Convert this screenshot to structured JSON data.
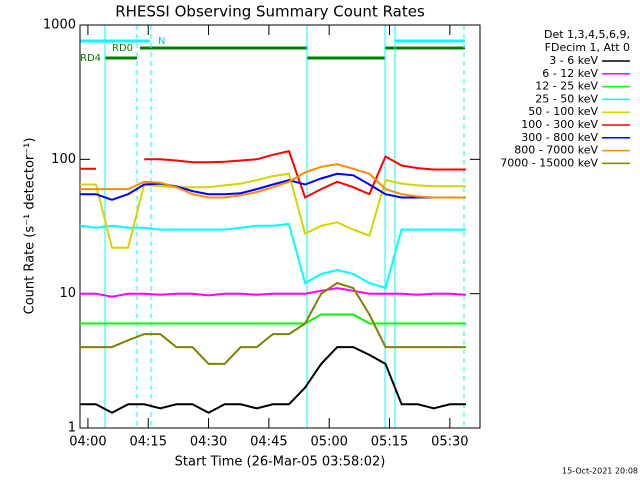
{
  "chart_data": {
    "type": "line",
    "title": "RHESSI Observing Summary Count Rates",
    "x_label": "Start Time (26-Mar-05 03:58:02)",
    "y_label": "Count Rate (s⁻¹ detector⁻¹)",
    "legend_title": [
      "Det 1,3,4,5,6,9,",
      "FDecim 1, Att 0"
    ],
    "annotations": [
      "N",
      "RD0",
      "RD4"
    ],
    "timestamp": "15-Oct-2021 20:08",
    "log_scale": true,
    "x": [
      -2,
      2,
      6,
      10,
      14,
      18,
      22,
      26,
      30,
      34,
      38,
      42,
      46,
      50,
      54,
      58,
      62,
      66,
      70,
      74,
      78,
      82,
      86,
      90,
      94
    ],
    "xlim": [
      -1.97,
      97.5
    ],
    "xticks": [
      {
        "value": 0,
        "label": "04:00"
      },
      {
        "value": 15,
        "label": "04:15"
      },
      {
        "value": 30,
        "label": "04:30"
      },
      {
        "value": 45,
        "label": "04:45"
      },
      {
        "value": 60,
        "label": "05:00"
      },
      {
        "value": 75,
        "label": "05:15"
      },
      {
        "value": 90,
        "label": "05:30"
      }
    ],
    "ylim": [
      1,
      1000
    ],
    "yticks": [
      1,
      10,
      100,
      1000
    ],
    "series": [
      {
        "name": "3 - 6 keV",
        "color": "#000000",
        "values": [
          1.5,
          1.5,
          1.3,
          1.5,
          1.5,
          1.4,
          1.5,
          1.5,
          1.3,
          1.5,
          1.5,
          1.4,
          1.5,
          1.5,
          2,
          3,
          4,
          4,
          3.5,
          3,
          1.5,
          1.5,
          1.4,
          1.5,
          1.5
        ]
      },
      {
        "name": "6 - 12 keV",
        "color": "#ff00ff",
        "values": [
          10,
          10,
          9.5,
          10,
          10,
          9.8,
          10,
          10,
          9.7,
          10,
          10,
          9.8,
          10,
          10,
          10,
          10.5,
          11,
          10.5,
          10,
          10,
          10,
          9.8,
          10,
          10,
          9.8
        ]
      },
      {
        "name": "12 - 25 keV",
        "color": "#00ff00",
        "values": [
          6,
          6,
          6,
          6,
          6,
          6,
          6,
          6,
          6,
          6,
          6,
          6,
          6,
          6,
          6,
          7,
          7,
          7,
          6,
          6,
          6,
          6,
          6,
          6,
          6
        ]
      },
      {
        "name": "25 - 50 keV",
        "color": "#00ffff",
        "values": [
          32,
          31,
          32,
          31,
          31,
          30,
          30,
          30,
          30,
          30,
          31,
          32,
          32,
          33,
          12,
          14,
          15,
          14,
          12,
          11,
          30,
          30,
          30,
          30,
          30
        ]
      },
      {
        "name": "50 - 100 keV",
        "color": "#d4d400",
        "values": [
          65,
          65,
          22,
          22,
          65,
          63,
          62,
          62,
          62,
          64,
          66,
          70,
          75,
          78,
          28,
          32,
          34,
          30,
          27,
          70,
          66,
          64,
          63,
          63,
          63
        ]
      },
      {
        "name": "100 - 300 keV",
        "color": "#ff0000",
        "values": [
          85,
          85,
          null,
          null,
          100,
          100,
          98,
          95,
          95,
          96,
          98,
          100,
          108,
          115,
          52,
          60,
          68,
          62,
          55,
          105,
          90,
          86,
          84,
          84,
          84
        ]
      },
      {
        "name": "300 - 800 keV",
        "color": "#0000ff",
        "values": [
          55,
          55,
          50,
          55,
          65,
          66,
          63,
          58,
          55,
          55,
          56,
          60,
          65,
          70,
          65,
          72,
          78,
          76,
          65,
          55,
          52,
          52,
          52,
          52,
          52
        ]
      },
      {
        "name": "800 - 7000 keV",
        "color": "#ff8c00",
        "values": [
          60,
          60,
          60,
          60,
          68,
          67,
          62,
          55,
          52,
          52,
          54,
          57,
          62,
          68,
          80,
          88,
          92,
          85,
          78,
          60,
          55,
          53,
          52,
          52,
          52
        ]
      },
      {
        "name": "7000 - 15000 keV",
        "color": "#808000",
        "values": [
          4,
          4,
          4,
          4.5,
          5,
          5,
          4,
          4,
          3,
          3,
          4,
          4,
          5,
          5,
          6,
          10,
          12,
          11,
          7,
          4,
          4,
          4,
          4,
          4,
          4
        ]
      }
    ]
  }
}
